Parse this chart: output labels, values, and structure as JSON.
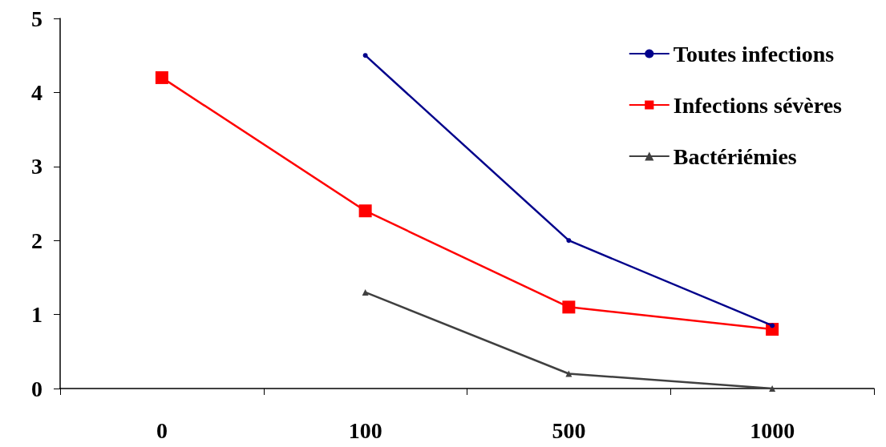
{
  "chart_data": {
    "type": "line",
    "categories": [
      "0",
      "100",
      "500",
      "1000"
    ],
    "ylim": [
      0,
      5
    ],
    "yticks": [
      0,
      1,
      2,
      3,
      4,
      5
    ],
    "grid": false,
    "legend": "top right",
    "series": [
      {
        "name": "Toutes infections",
        "color": "#00008b",
        "marker": "circle",
        "values": [
          null,
          4.5,
          2.0,
          0.85
        ]
      },
      {
        "name": "Infections sévères",
        "color": "#ff0000",
        "marker": "square",
        "values": [
          4.2,
          2.4,
          1.1,
          0.8
        ]
      },
      {
        "name": "Bactériémies",
        "color": "#404040",
        "marker": "triangle",
        "values": [
          null,
          1.3,
          0.2,
          0.0
        ]
      }
    ]
  }
}
